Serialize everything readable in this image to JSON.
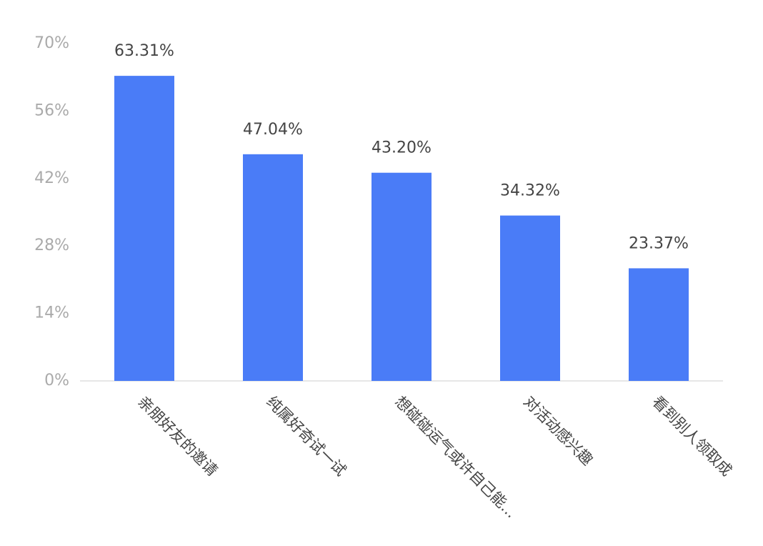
{
  "chart_data": {
    "type": "bar",
    "categories": [
      "亲朋好友的邀请",
      "纯属好奇试一试",
      "想碰碰运气或许自己能...",
      "对活动感兴趣",
      "看到别人领取成"
    ],
    "values": [
      63.31,
      47.04,
      43.2,
      34.32,
      23.37
    ],
    "value_labels": [
      "63.31%",
      "47.04%",
      "43.20%",
      "34.32%",
      "23.37%"
    ],
    "color": "#4a7cf7",
    "ylim": [
      0,
      70
    ],
    "yticks": [
      {
        "value": 0,
        "label": "0%"
      },
      {
        "value": 14,
        "label": "14%"
      },
      {
        "value": 28,
        "label": "28%"
      },
      {
        "value": 42,
        "label": "42%"
      },
      {
        "value": 56,
        "label": "56%"
      },
      {
        "value": 70,
        "label": "70%"
      }
    ],
    "grid": false
  }
}
